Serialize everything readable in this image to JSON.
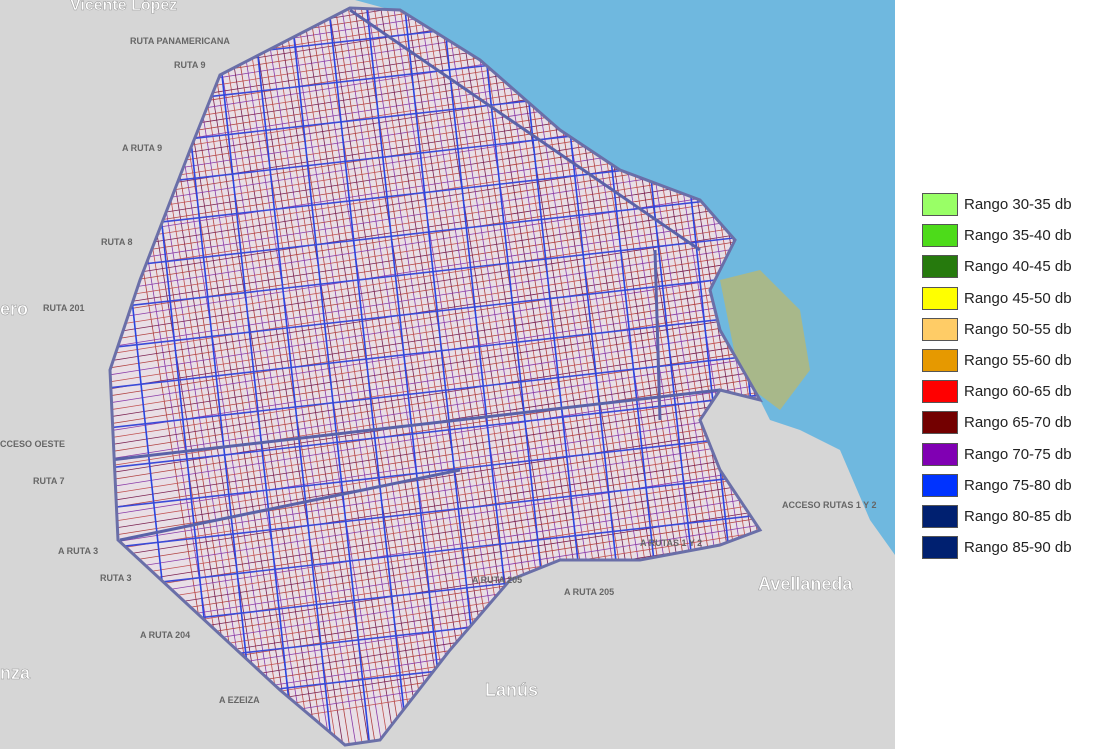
{
  "map": {
    "labels": [
      "Vicente López",
      "RUTA PANAMERICANA",
      "RUTA 9",
      "A RUTA 9",
      "RUTA 8",
      "ero",
      "RUTA 201",
      "CCESO OESTE",
      "RUTA 7",
      "A RUTA 3",
      "RUTA 3",
      "A RUTA 204",
      "nza",
      "A EZEIZA",
      "Lanús",
      "A RUTA 205",
      "A RUTA 205",
      "A RUTAS 1 Y 2",
      "ACCESO RUTAS 1 Y 2",
      "Avellaneda"
    ]
  },
  "legend": {
    "items": [
      {
        "label": "Rango 30-35 db",
        "color": "#99ff66"
      },
      {
        "label": "Rango 35-40 db",
        "color": "#4ddb1a"
      },
      {
        "label": "Rango 40-45 db",
        "color": "#267a0d"
      },
      {
        "label": "Rango 45-50 db",
        "color": "#ffff00"
      },
      {
        "label": "Rango 50-55 db",
        "color": "#ffcc66"
      },
      {
        "label": "Rango 55-60 db",
        "color": "#e69900"
      },
      {
        "label": "Rango 60-65 db",
        "color": "#ff0000"
      },
      {
        "label": "Rango 65-70 db",
        "color": "#730000"
      },
      {
        "label": "Rango 70-75 db",
        "color": "#8000b3"
      },
      {
        "label": "Rango 75-80 db",
        "color": "#0033ff"
      },
      {
        "label": "Rango 80-85 db",
        "color": "#002070"
      },
      {
        "label": "Rango 85-90 db",
        "color": "#002070"
      }
    ]
  }
}
